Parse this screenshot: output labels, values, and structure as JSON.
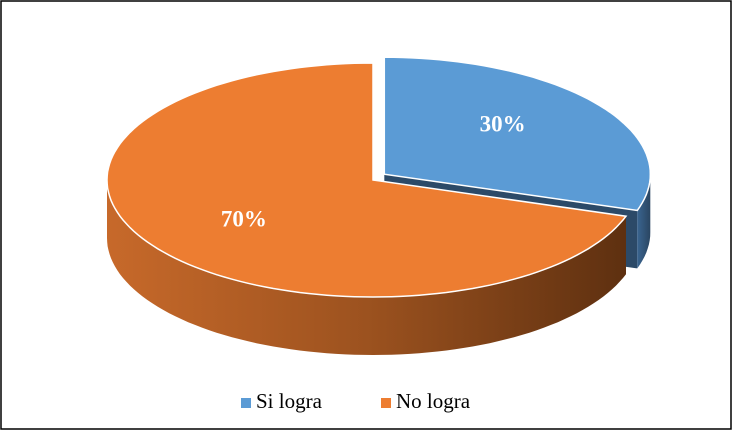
{
  "chart_data": {
    "type": "pie",
    "categories": [
      "Si logra",
      "No logra"
    ],
    "values": [
      30,
      70
    ],
    "value_labels": [
      "30%",
      "70%"
    ],
    "colors": [
      "#5b9bd5",
      "#ed7d31"
    ],
    "legend": "bottom"
  }
}
